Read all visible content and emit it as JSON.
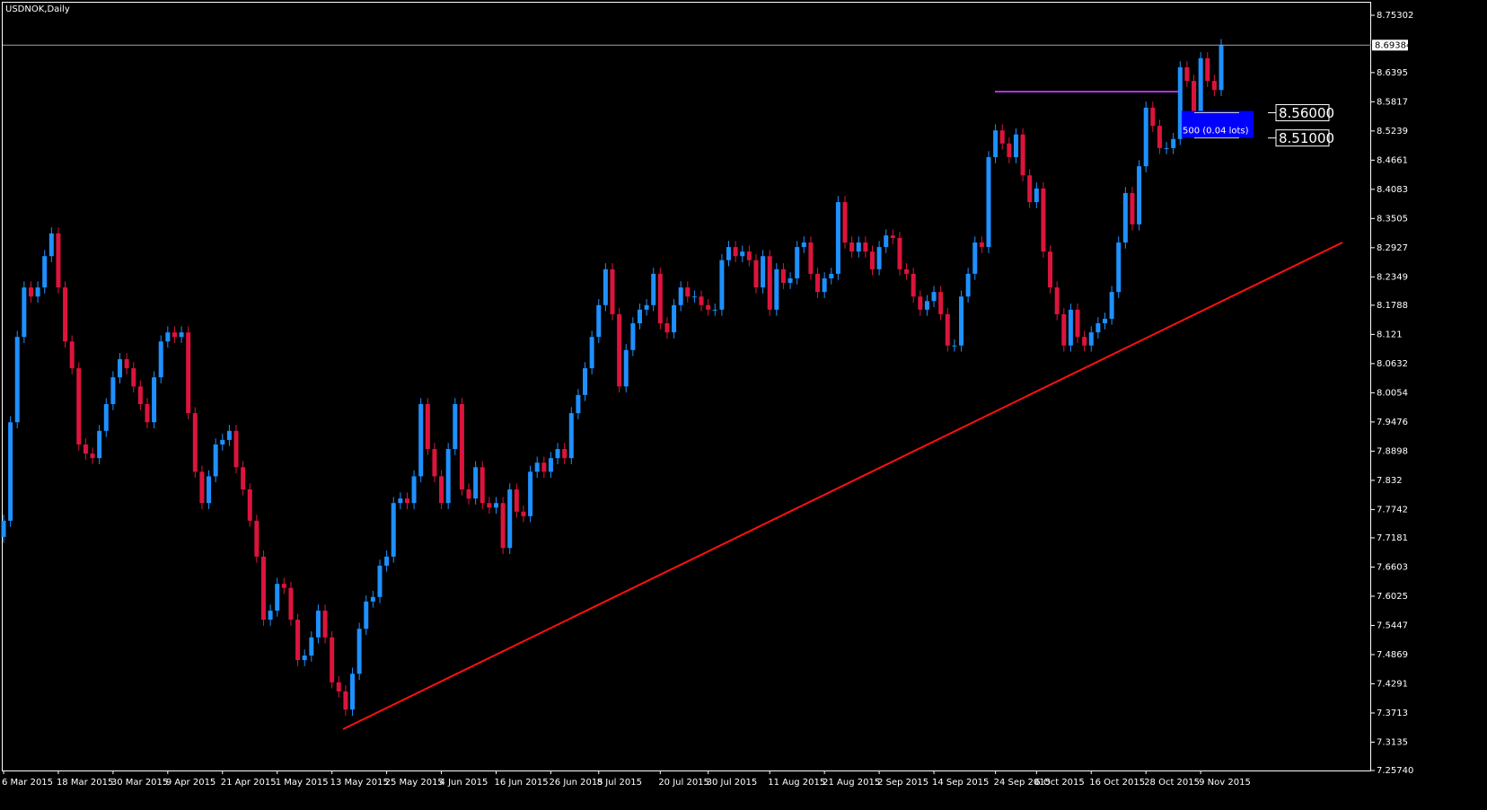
{
  "chart_data": {
    "type": "candlestick",
    "title": "USDNOK,Daily",
    "up_color": "#1e90ff",
    "down_color": "#dc143c",
    "ylim": [
      7.2574,
      8.75302
    ],
    "yticks": [
      {
        "value": 7.2574,
        "label": "7.25740"
      },
      7.3135,
      7.3713,
      7.4291,
      7.4869,
      7.5447,
      7.6025,
      7.6603,
      7.7181,
      7.7742,
      7.832,
      7.8898,
      7.9476,
      8.0054,
      8.0632,
      8.121,
      8.1788,
      8.2349,
      8.2927,
      8.3505,
      8.4083,
      8.4661,
      8.5239,
      8.5817,
      8.6395,
      8.75302
    ],
    "last_price": 8.69384,
    "xticks": [
      {
        "value": 0,
        "label": "6 Mar 2015"
      },
      {
        "value": 8,
        "label": "18 Mar 2015"
      },
      {
        "value": 16,
        "label": "30 Mar 2015"
      },
      {
        "value": 24,
        "label": "9 Apr 2015"
      },
      {
        "value": 32,
        "label": "21 Apr 2015"
      },
      {
        "value": 40,
        "label": "1 May 2015"
      },
      {
        "value": 48,
        "label": "13 May 2015"
      },
      {
        "value": 56,
        "label": "25 May 2015"
      },
      {
        "value": 64,
        "label": "4 Jun 2015"
      },
      {
        "value": 72,
        "label": "16 Jun 2015"
      },
      {
        "value": 80,
        "label": "26 Jun 2015"
      },
      {
        "value": 87,
        "label": "8 Jul 2015"
      },
      {
        "value": 96,
        "label": "20 Jul 2015"
      },
      {
        "value": 103,
        "label": "30 Jul 2015"
      },
      {
        "value": 112,
        "label": "11 Aug 2015"
      },
      {
        "value": 120,
        "label": "21 Aug 2015"
      },
      {
        "value": 128,
        "label": "2 Sep 2015"
      },
      {
        "value": 136,
        "label": "14 Sep 2015"
      },
      {
        "value": 145,
        "label": "24 Sep 2015"
      },
      {
        "value": 151,
        "label": "6 Oct 2015"
      },
      {
        "value": 159,
        "label": "16 Oct 2015"
      },
      {
        "value": 167,
        "label": "28 Oct 2015"
      },
      {
        "value": 175,
        "label": "9 Nov 2015"
      }
    ],
    "order": {
      "label": "500 (0.04 lots)",
      "levels": [
        {
          "value": 8.56,
          "label": "8.56000"
        },
        {
          "value": 8.51,
          "label": "8.51000"
        }
      ]
    },
    "open": [
      7.72,
      7.752,
      7.947,
      8.116,
      8.214,
      8.196,
      8.214,
      8.276,
      8.321,
      8.214,
      8.107,
      8.054,
      7.903,
      7.885,
      7.876,
      7.93,
      7.983,
      8.036,
      8.072,
      8.054,
      8.018,
      7.983,
      7.947,
      8.036,
      8.107,
      8.125,
      8.116,
      8.125,
      7.965,
      7.849,
      7.787,
      7.84,
      7.903,
      7.912,
      7.93,
      7.858,
      7.814,
      7.752,
      7.681,
      7.556,
      7.574,
      7.627,
      7.619,
      7.556,
      7.476,
      7.485,
      7.521,
      7.574,
      7.521,
      7.432,
      7.414,
      7.378,
      7.449,
      7.538,
      7.592,
      7.601,
      7.663,
      7.681,
      7.787,
      7.796,
      7.787,
      7.84,
      7.983,
      7.894,
      7.84,
      7.787,
      7.894,
      7.983,
      7.814,
      7.796,
      7.858,
      7.787,
      7.778,
      7.787,
      7.698,
      7.814,
      7.77,
      7.761,
      7.849,
      7.867,
      7.849,
      7.876,
      7.894,
      7.876,
      7.965,
      8.001,
      8.054,
      8.116,
      8.179,
      8.25,
      8.161,
      8.018,
      8.09,
      8.143,
      8.17,
      8.179,
      8.241,
      8.143,
      8.125,
      8.179,
      8.214,
      8.196,
      8.196,
      8.179,
      8.17,
      8.17,
      8.268,
      8.294,
      8.276,
      8.285,
      8.268,
      8.214,
      8.276,
      8.17,
      8.25,
      8.223,
      8.232,
      8.294,
      8.303,
      8.241,
      8.205,
      8.232,
      8.241,
      8.383,
      8.303,
      8.285,
      8.303,
      8.285,
      8.25,
      8.294,
      8.317,
      8.312,
      8.25,
      8.241,
      8.196,
      8.17,
      8.187,
      8.205,
      8.161,
      8.099,
      8.099,
      8.196,
      8.241,
      8.303,
      8.294,
      8.472,
      8.525,
      8.499,
      8.472,
      8.517,
      8.436,
      8.383,
      8.41,
      8.285,
      8.214,
      8.161,
      8.099,
      8.17,
      8.116,
      8.099,
      8.125,
      8.143,
      8.152,
      8.205,
      8.303,
      8.401,
      8.339,
      8.454,
      8.57,
      8.534,
      8.49,
      8.49,
      8.508,
      8.65,
      8.623,
      8.552,
      8.668,
      8.623,
      8.605
    ],
    "high": [
      7.764,
      7.959,
      8.128,
      8.226,
      8.226,
      8.226,
      8.288,
      8.333,
      8.333,
      8.226,
      8.119,
      8.066,
      7.915,
      7.897,
      7.942,
      7.995,
      8.048,
      8.084,
      8.084,
      8.066,
      8.03,
      7.995,
      8.048,
      8.119,
      8.137,
      8.137,
      8.137,
      8.137,
      7.977,
      7.861,
      7.852,
      7.915,
      7.924,
      7.942,
      7.942,
      7.87,
      7.826,
      7.764,
      7.693,
      7.586,
      7.639,
      7.639,
      7.631,
      7.568,
      7.497,
      7.533,
      7.586,
      7.586,
      7.533,
      7.444,
      7.426,
      7.461,
      7.55,
      7.604,
      7.613,
      7.675,
      7.693,
      7.799,
      7.808,
      7.808,
      7.852,
      7.995,
      7.995,
      7.906,
      7.852,
      7.906,
      7.995,
      7.995,
      7.826,
      7.87,
      7.87,
      7.799,
      7.799,
      7.799,
      7.826,
      7.826,
      7.782,
      7.861,
      7.879,
      7.879,
      7.888,
      7.906,
      7.906,
      7.977,
      8.013,
      8.066,
      8.128,
      8.191,
      8.262,
      8.262,
      8.173,
      8.102,
      8.155,
      8.182,
      8.191,
      8.253,
      8.253,
      8.155,
      8.191,
      8.226,
      8.226,
      8.208,
      8.208,
      8.191,
      8.182,
      8.28,
      8.306,
      8.306,
      8.297,
      8.297,
      8.28,
      8.288,
      8.288,
      8.262,
      8.262,
      8.244,
      8.306,
      8.315,
      8.315,
      8.253,
      8.244,
      8.253,
      8.395,
      8.395,
      8.315,
      8.315,
      8.315,
      8.297,
      8.306,
      8.329,
      8.329,
      8.324,
      8.262,
      8.253,
      8.208,
      8.199,
      8.217,
      8.217,
      8.173,
      8.111,
      8.208,
      8.253,
      8.315,
      8.315,
      8.484,
      8.537,
      8.537,
      8.511,
      8.529,
      8.529,
      8.448,
      8.422,
      8.422,
      8.297,
      8.226,
      8.173,
      8.182,
      8.182,
      8.128,
      8.137,
      8.155,
      8.164,
      8.217,
      8.315,
      8.413,
      8.413,
      8.466,
      8.582,
      8.582,
      8.546,
      8.502,
      8.52,
      8.662,
      8.662,
      8.635,
      8.68,
      8.68,
      8.635,
      8.706
    ],
    "low": [
      7.708,
      7.74,
      7.935,
      8.104,
      8.184,
      8.184,
      8.202,
      8.264,
      8.202,
      8.095,
      8.042,
      7.891,
      7.873,
      7.864,
      7.864,
      7.918,
      7.971,
      8.024,
      8.042,
      8.006,
      7.971,
      7.935,
      7.935,
      8.024,
      8.095,
      8.104,
      8.104,
      7.953,
      7.837,
      7.775,
      7.775,
      7.828,
      7.891,
      7.9,
      7.846,
      7.802,
      7.74,
      7.669,
      7.544,
      7.544,
      7.562,
      7.607,
      7.544,
      7.464,
      7.464,
      7.473,
      7.509,
      7.509,
      7.42,
      7.402,
      7.366,
      7.366,
      7.437,
      7.526,
      7.58,
      7.589,
      7.651,
      7.669,
      7.775,
      7.775,
      7.775,
      7.828,
      7.882,
      7.828,
      7.775,
      7.775,
      7.882,
      7.802,
      7.784,
      7.784,
      7.775,
      7.766,
      7.766,
      7.686,
      7.686,
      7.758,
      7.749,
      7.749,
      7.837,
      7.837,
      7.837,
      7.864,
      7.864,
      7.864,
      7.953,
      7.989,
      8.042,
      8.104,
      8.167,
      8.149,
      8.006,
      8.006,
      8.078,
      8.131,
      8.158,
      8.167,
      8.131,
      8.113,
      8.113,
      8.167,
      8.184,
      8.184,
      8.167,
      8.158,
      8.158,
      8.158,
      8.256,
      8.264,
      8.264,
      8.256,
      8.202,
      8.202,
      8.158,
      8.158,
      8.211,
      8.211,
      8.22,
      8.282,
      8.229,
      8.193,
      8.193,
      8.22,
      8.229,
      8.291,
      8.273,
      8.273,
      8.273,
      8.238,
      8.238,
      8.282,
      8.3,
      8.238,
      8.229,
      8.184,
      8.158,
      8.158,
      8.175,
      8.149,
      8.087,
      8.087,
      8.087,
      8.184,
      8.229,
      8.282,
      8.282,
      8.46,
      8.487,
      8.46,
      8.46,
      8.424,
      8.371,
      8.371,
      8.273,
      8.202,
      8.149,
      8.087,
      8.087,
      8.104,
      8.087,
      8.087,
      8.113,
      8.131,
      8.14,
      8.193,
      8.291,
      8.327,
      8.327,
      8.442,
      8.522,
      8.478,
      8.478,
      8.478,
      8.496,
      8.611,
      8.54,
      8.54,
      8.611,
      8.593,
      8.593
    ],
    "close": [
      7.752,
      7.947,
      8.116,
      8.214,
      8.196,
      8.214,
      8.276,
      8.321,
      8.214,
      8.107,
      8.054,
      7.903,
      7.885,
      7.876,
      7.93,
      7.983,
      8.036,
      8.072,
      8.054,
      8.018,
      7.983,
      7.947,
      8.036,
      8.107,
      8.125,
      8.116,
      8.125,
      7.965,
      7.849,
      7.787,
      7.84,
      7.903,
      7.912,
      7.93,
      7.858,
      7.814,
      7.752,
      7.681,
      7.556,
      7.574,
      7.627,
      7.619,
      7.556,
      7.476,
      7.485,
      7.521,
      7.574,
      7.521,
      7.432,
      7.414,
      7.378,
      7.449,
      7.538,
      7.592,
      7.601,
      7.663,
      7.681,
      7.787,
      7.796,
      7.787,
      7.84,
      7.983,
      7.894,
      7.84,
      7.787,
      7.894,
      7.983,
      7.814,
      7.796,
      7.858,
      7.787,
      7.778,
      7.787,
      7.698,
      7.814,
      7.77,
      7.761,
      7.849,
      7.867,
      7.849,
      7.876,
      7.894,
      7.876,
      7.965,
      8.001,
      8.054,
      8.116,
      8.179,
      8.25,
      8.161,
      8.018,
      8.09,
      8.143,
      8.17,
      8.179,
      8.241,
      8.143,
      8.125,
      8.179,
      8.214,
      8.196,
      8.196,
      8.179,
      8.17,
      8.17,
      8.268,
      8.294,
      8.276,
      8.285,
      8.268,
      8.214,
      8.276,
      8.17,
      8.25,
      8.223,
      8.232,
      8.294,
      8.303,
      8.241,
      8.205,
      8.232,
      8.241,
      8.383,
      8.303,
      8.285,
      8.303,
      8.285,
      8.25,
      8.294,
      8.317,
      8.312,
      8.25,
      8.241,
      8.196,
      8.17,
      8.187,
      8.205,
      8.161,
      8.099,
      8.099,
      8.196,
      8.241,
      8.303,
      8.294,
      8.472,
      8.525,
      8.499,
      8.472,
      8.517,
      8.436,
      8.383,
      8.41,
      8.285,
      8.214,
      8.161,
      8.099,
      8.17,
      8.116,
      8.099,
      8.125,
      8.143,
      8.152,
      8.205,
      8.303,
      8.401,
      8.339,
      8.454,
      8.57,
      8.534,
      8.49,
      8.49,
      8.508,
      8.65,
      8.623,
      8.552,
      8.668,
      8.623,
      8.605,
      8.694
    ]
  }
}
